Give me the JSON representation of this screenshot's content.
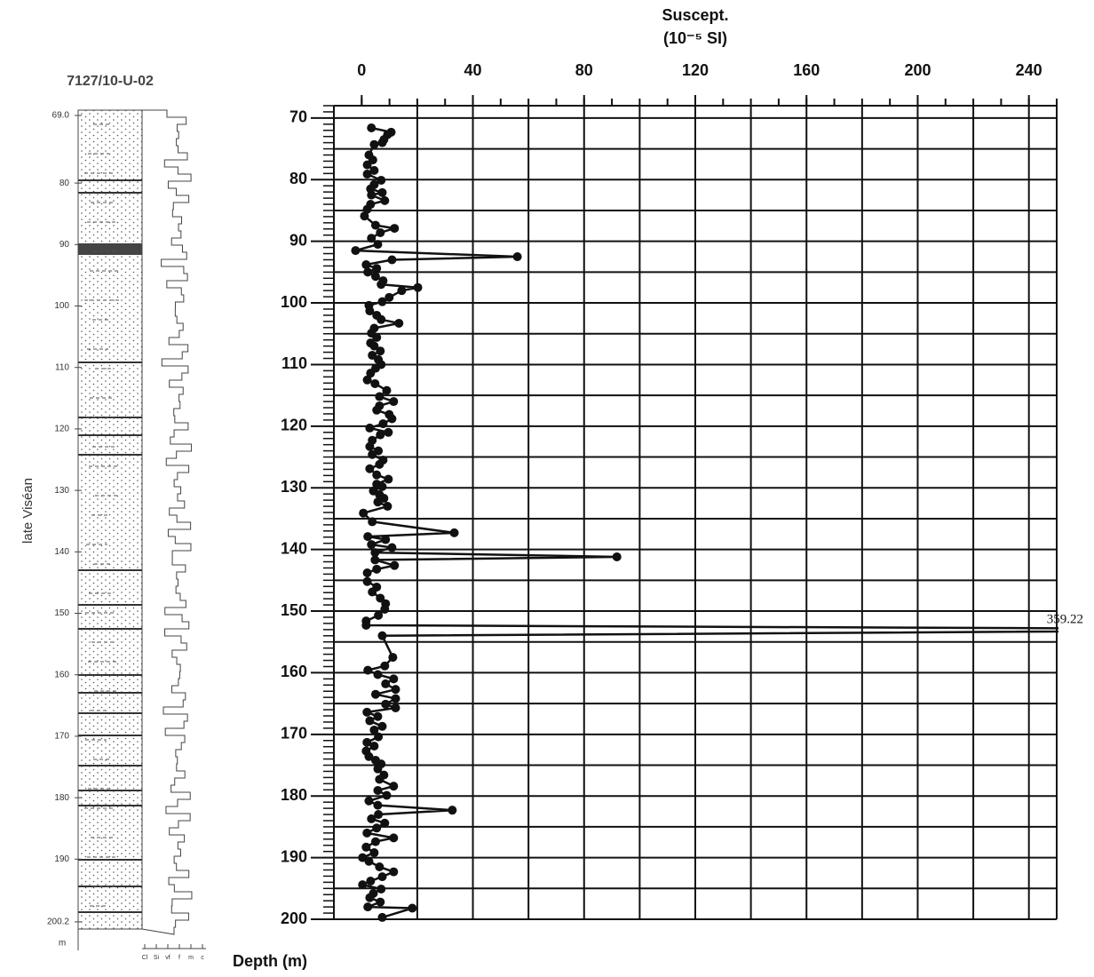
{
  "log": {
    "title": "7127/10-U-02",
    "depths": [
      {
        "value": 69,
        "label": "69.0"
      },
      80,
      90,
      100,
      110,
      120,
      130,
      140,
      150,
      160,
      170,
      180,
      190,
      {
        "value": 200.2,
        "label": "200.2"
      }
    ],
    "unit": "m",
    "stage": "late Viséan",
    "grain_sizes": [
      "Cl",
      "Si",
      "vf",
      "f",
      "m",
      "c"
    ]
  },
  "chart_data": {
    "type": "line",
    "x_label": [
      "Suscept.",
      "(10⁻⁵ SI)"
    ],
    "y_label": "Depth (m)",
    "xlim": [
      -10,
      250
    ],
    "ylim": [
      68,
      200
    ],
    "y_inverted": true,
    "grid": true,
    "color": "#111111",
    "xticks": [
      0,
      40,
      80,
      120,
      160,
      200,
      240
    ],
    "xgrid": [
      20,
      40,
      60,
      80,
      100,
      120,
      140,
      160,
      180,
      200,
      220,
      240
    ],
    "xminor": [
      0,
      10,
      20,
      30,
      40,
      50,
      60,
      70,
      80,
      90,
      100,
      110,
      120,
      130,
      140,
      150,
      160,
      170,
      180,
      190,
      200,
      210,
      220,
      230,
      240,
      250
    ],
    "yticks": [
      70,
      80,
      90,
      100,
      110,
      120,
      130,
      140,
      150,
      160,
      170,
      180,
      190,
      200
    ],
    "ygrid": [
      70,
      75,
      80,
      85,
      90,
      95,
      100,
      105,
      110,
      115,
      120,
      125,
      130,
      135,
      140,
      145,
      150,
      155,
      160,
      165,
      170,
      175,
      180,
      185,
      190,
      195,
      200
    ],
    "yminor": [
      68,
      69,
      70,
      71,
      72,
      73,
      74,
      75,
      76,
      77,
      78,
      79,
      80,
      81,
      82,
      83,
      84,
      85,
      86,
      87,
      88,
      89,
      90,
      91,
      92,
      93,
      94,
      95,
      96,
      97,
      98,
      99,
      100,
      101,
      102,
      103,
      104,
      105,
      106,
      107,
      108,
      109,
      110,
      111,
      112,
      113,
      114,
      115,
      116,
      117,
      118,
      119,
      120,
      121,
      122,
      123,
      124,
      125,
      126,
      127,
      128,
      129,
      130,
      131,
      132,
      133,
      134,
      135,
      136,
      137,
      138,
      139,
      140,
      141,
      142,
      143,
      144,
      145,
      146,
      147,
      148,
      149,
      150,
      151,
      152,
      153,
      154,
      155,
      156,
      157,
      158,
      159,
      160,
      161,
      162,
      163,
      164,
      165,
      166,
      167,
      168,
      169,
      170,
      171,
      172,
      173,
      174,
      175,
      176,
      177,
      178,
      179,
      180,
      181,
      182,
      183,
      184,
      185,
      186,
      187,
      188,
      189,
      190,
      191,
      192,
      193,
      194,
      195,
      196,
      197,
      198,
      199,
      200
    ],
    "x": [
      71.6,
      72.3,
      72.7,
      73.5,
      74,
      74.3,
      76,
      76.8,
      77.6,
      78.5,
      79.1,
      80.1,
      80.8,
      81.5,
      82.1,
      82.5,
      83.4,
      84,
      84.8,
      85.9,
      87.4,
      87.9,
      88.6,
      89.5,
      90.5,
      91.5,
      92.5,
      93,
      93.8,
      94.4,
      95,
      95.7,
      96.4,
      97,
      97.5,
      98,
      99.1,
      99.8,
      100.4,
      101.3,
      102,
      102.7,
      103.3,
      104.1,
      104.9,
      105.6,
      106.5,
      107,
      107.8,
      108.5,
      109.2,
      110,
      110.6,
      111.4,
      112.5,
      113.1,
      114.2,
      115.2,
      116,
      116.7,
      117.4,
      118.1,
      118.8,
      119.6,
      120.3,
      121,
      121.4,
      122.3,
      123.3,
      124,
      124.6,
      125.5,
      126.2,
      126.9,
      127.9,
      128.6,
      129.4,
      129.8,
      130.5,
      131.1,
      131.7,
      132.3,
      133,
      134.1,
      135.5,
      137.3,
      137.9,
      138.4,
      139.2,
      139.7,
      140.5,
      141.2,
      141.7,
      142.6,
      143.2,
      143.8,
      145.2,
      146.1,
      146.9,
      147.9,
      148.8,
      149.7,
      150.7,
      151.6,
      152.3,
      153,
      154,
      157.5,
      158.9,
      159.6,
      160.3,
      161,
      161.8,
      162.7,
      163.5,
      164.2,
      165.1,
      165.7,
      166.4,
      167.1,
      167.8,
      168.7,
      169.3,
      170.4,
      171.3,
      171.9,
      172.7,
      173.6,
      174.2,
      174.8,
      175.6,
      176.6,
      177.3,
      178.4,
      179.1,
      179.9,
      180.8,
      181.5,
      182.3,
      183,
      183.7,
      184.4,
      185.2,
      186,
      186.8,
      187.4,
      188.3,
      189.2,
      190,
      190.6,
      191.5,
      192.3,
      193.1,
      193.8,
      194.4,
      195.1,
      195.8,
      196.5,
      197.2,
      198,
      198.2,
      199.7
    ],
    "values": [
      3.5,
      10.6,
      9.3,
      8,
      7.4,
      4.5,
      2.6,
      4,
      2,
      4.5,
      2,
      7,
      4.5,
      3.2,
      7.4,
      3.5,
      8.3,
      3.2,
      2,
      1,
      5,
      11.8,
      6.7,
      3.5,
      5.8,
      -2.2,
      56,
      10.9,
      1.6,
      5.4,
      2.2,
      5,
      7.7,
      7,
      20.2,
      14.4,
      9.9,
      7.4,
      2.6,
      2.9,
      5.4,
      7,
      13.4,
      4.5,
      3.5,
      5.4,
      3.2,
      4.5,
      6.7,
      3.8,
      6,
      7,
      5,
      3.2,
      2,
      4.8,
      9,
      6.4,
      11.5,
      6.4,
      5.4,
      9.9,
      10.9,
      7.7,
      2.9,
      9.6,
      6.7,
      3.8,
      2.9,
      6,
      3.8,
      7.7,
      6.4,
      2.9,
      5.4,
      9.6,
      5.4,
      7.4,
      4.2,
      6.4,
      8,
      5.8,
      9.3,
      0.6,
      3.8,
      33.3,
      2.2,
      8.6,
      3.5,
      10.9,
      4.8,
      91.8,
      4.8,
      11.8,
      5.4,
      2,
      2,
      5.4,
      3.8,
      6.7,
      8.6,
      8.3,
      6,
      1.6,
      1.6,
      359.22,
      7.4,
      11.2,
      8.3,
      2.2,
      5.8,
      11.5,
      8.6,
      12.2,
      5,
      12.2,
      8.6,
      12.2,
      1.9,
      5.8,
      2.9,
      7.4,
      4.5,
      6,
      1.9,
      4.5,
      1.6,
      2.6,
      5,
      7,
      5.8,
      8,
      6.4,
      11.5,
      5.8,
      9,
      2.6,
      5.8,
      32.6,
      6,
      3.5,
      8.3,
      5.4,
      1.9,
      11.5,
      5,
      1.6,
      4.5,
      0.3,
      2.6,
      6.4,
      11.5,
      7.4,
      3.2,
      0.3,
      7,
      4.2,
      2.9,
      6.7,
      2.2,
      18.2,
      7.4
    ]
  }
}
